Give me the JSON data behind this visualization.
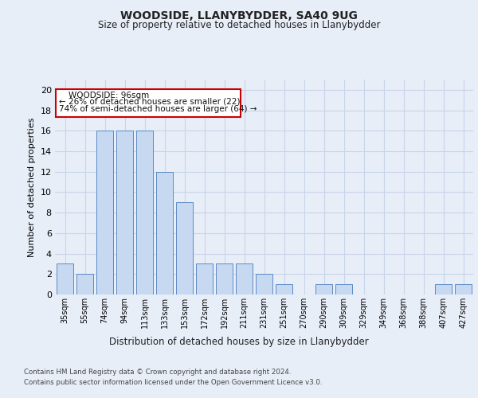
{
  "title1": "WOODSIDE, LLANYBYDDER, SA40 9UG",
  "title2": "Size of property relative to detached houses in Llanybydder",
  "xlabel": "Distribution of detached houses by size in Llanybydder",
  "ylabel": "Number of detached properties",
  "categories": [
    "35sqm",
    "55sqm",
    "74sqm",
    "94sqm",
    "113sqm",
    "133sqm",
    "153sqm",
    "172sqm",
    "192sqm",
    "211sqm",
    "231sqm",
    "251sqm",
    "270sqm",
    "290sqm",
    "309sqm",
    "329sqm",
    "349sqm",
    "368sqm",
    "388sqm",
    "407sqm",
    "427sqm"
  ],
  "values": [
    3,
    2,
    16,
    16,
    16,
    12,
    9,
    3,
    3,
    3,
    2,
    1,
    0,
    1,
    1,
    0,
    0,
    0,
    0,
    1,
    1
  ],
  "bar_color": "#c6d9f0",
  "bar_edge_color": "#5b8ac5",
  "annotation_text_line1": "WOODSIDE: 96sqm",
  "annotation_text_line2": "← 26% of detached houses are smaller (22)",
  "annotation_text_line3": "74% of semi-detached houses are larger (64) →",
  "annotation_box_color": "#ffffff",
  "annotation_box_edge_color": "#cc0000",
  "ylim": [
    0,
    21
  ],
  "yticks": [
    0,
    2,
    4,
    6,
    8,
    10,
    12,
    14,
    16,
    18,
    20
  ],
  "grid_color": "#c8d4e8",
  "footer1": "Contains HM Land Registry data © Crown copyright and database right 2024.",
  "footer2": "Contains public sector information licensed under the Open Government Licence v3.0.",
  "bg_color": "#e8eef8",
  "plot_bg_color": "#e8eef8"
}
